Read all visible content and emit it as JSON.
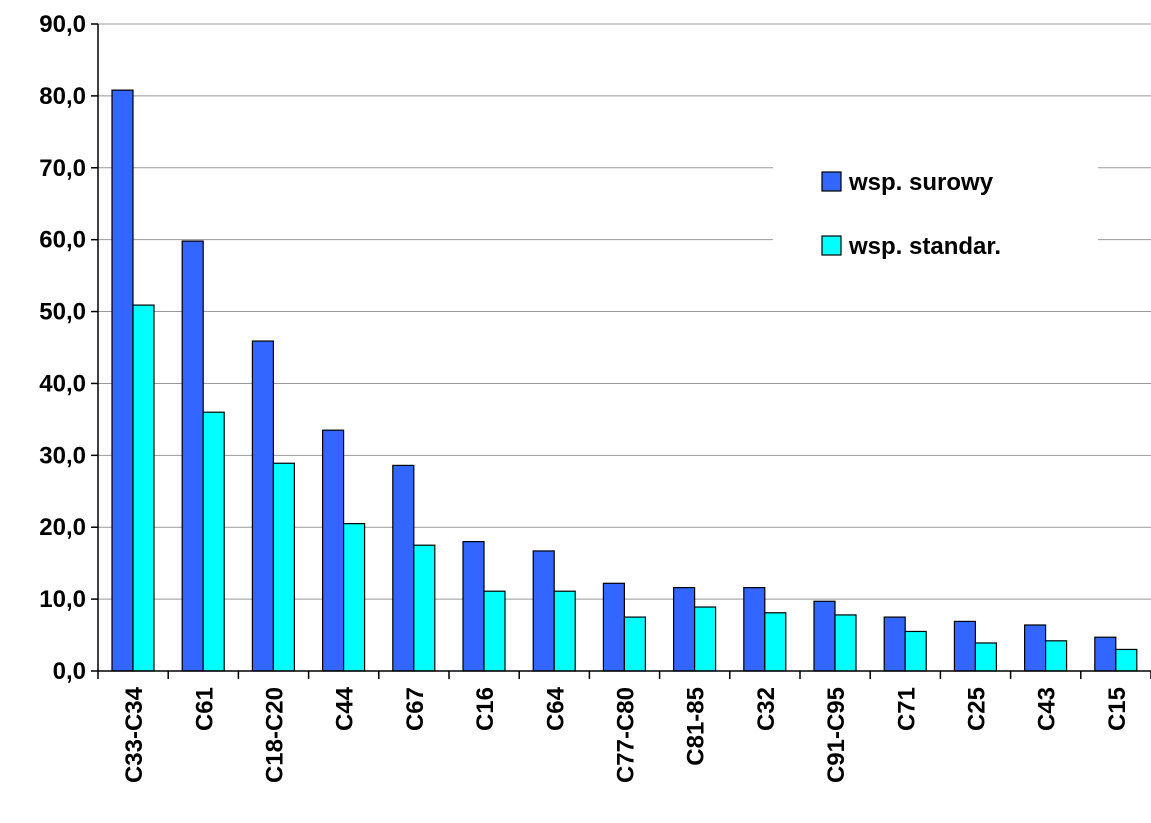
{
  "chart_data": {
    "type": "bar",
    "categories": [
      "C33-C34",
      "C61",
      "C18-C20",
      "C44",
      "C67",
      "C16",
      "C64",
      "C77-C80",
      "C81-85",
      "C32",
      "C91-C95",
      "C71",
      "C25",
      "C43",
      "C15"
    ],
    "series": [
      {
        "name": "wsp. surowy",
        "color": "#3366ff",
        "values": [
          80.8,
          59.8,
          45.9,
          33.5,
          28.6,
          18.0,
          16.7,
          12.2,
          11.6,
          11.6,
          9.7,
          7.5,
          6.9,
          6.4,
          4.7
        ]
      },
      {
        "name": "wsp. standar.",
        "color": "#00ffff",
        "values": [
          50.9,
          36.0,
          28.9,
          20.5,
          17.5,
          11.1,
          11.1,
          7.5,
          8.9,
          8.1,
          7.8,
          5.5,
          3.9,
          4.2,
          3.0
        ]
      }
    ],
    "y_ticks": [
      "0,0",
      "10,0",
      "20,0",
      "30,0",
      "40,0",
      "50,0",
      "60,0",
      "70,0",
      "80,0",
      "90,0"
    ],
    "ylim": [
      0,
      90
    ],
    "grid": true,
    "legend_position": "top-right"
  }
}
